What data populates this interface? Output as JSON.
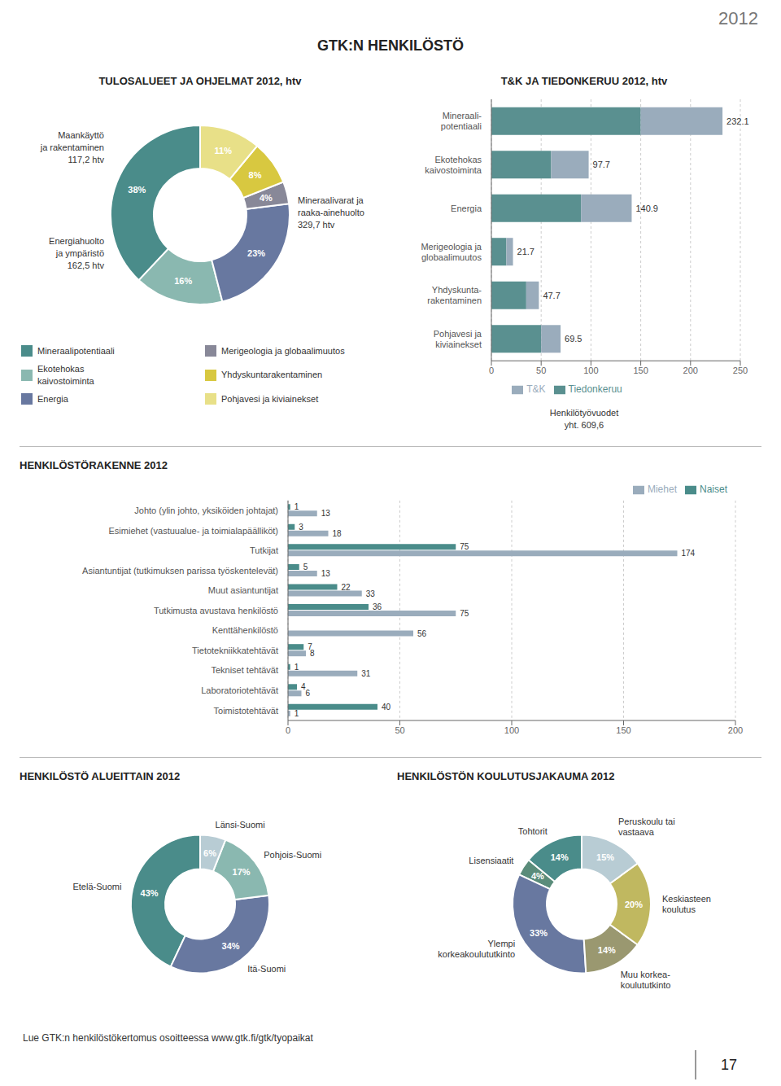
{
  "title": "GTK:N HENKILÖSTÖ",
  "subtitle": "2012",
  "annotations": [
    "Lue GTK:n henkilöstökertomus osoitteessa www.gtk.fi/gtk/tyopaikat",
    "17"
  ],
  "chart_data": [
    {
      "type": "pie",
      "title": "TULOSALUEET JA OHJELMAT 2012, htv",
      "categories": [
        "Mineraalipotentiaali",
        "Ekotehokas\nkaivostoiminta",
        "Energia",
        "Merigeologia ja globaalimuutos",
        "Yhdyskuntarakentaminen",
        "Pohjavesi ja kiviainekset"
      ],
      "values": [
        38,
        16,
        23,
        4,
        8,
        11
      ],
      "value_labels": [
        "38%",
        "16%",
        "23%",
        "4%",
        "8%",
        "11%"
      ],
      "colors": [
        "#4a8c8a",
        "#8ab8b0",
        "#6878a0",
        "#888898",
        "#d8c840",
        "#e8e088"
      ],
      "data_labels": true,
      "legend": "bottom",
      "annotations": [
        "Maankäyttö\nja rakentaminen\n117,2 htv",
        "Energiahuolto\nja ympäristö\n162,5 htv",
        "Mineraalivarat ja\nraaka-ainehuolto\n329,7 htv"
      ]
    },
    {
      "type": "bar",
      "orientation": "horizontal",
      "stacked": true,
      "title": "T&K JA TIEDONKERUU 2012, htv",
      "categories": [
        "Mineraali-\npotentiaali",
        "Ekotehokas\nkaivostoiminta",
        "Energia",
        "Merigeologia ja\nglobaalimuutos",
        "Yhdyskunta-\nrakentaminen",
        "Pohjavesi ja\nkiviainekset"
      ],
      "series": [
        {
          "name": "Tiedonkeruu",
          "color": "#5a9090",
          "values": [
            150,
            60,
            90,
            15,
            35,
            50
          ]
        },
        {
          "name": "T&K",
          "color": "#9aacbc",
          "values": [
            82.1,
            37.7,
            50.9,
            6.7,
            12.7,
            19.5
          ]
        }
      ],
      "totals": [
        232.1,
        97.7,
        140.9,
        21.7,
        47.7,
        69.5
      ],
      "xlim": [
        0,
        250
      ],
      "xticks": [
        0,
        50,
        100,
        150,
        200,
        250
      ],
      "grid": true,
      "legend": "bottom",
      "annotations": [
        "Henkilötyövuodet\nyht. 609,6"
      ]
    },
    {
      "type": "bar",
      "orientation": "horizontal",
      "title": "HENKILÖSTÖRAKENNE 2012",
      "categories": [
        "Johto (ylin johto, yksiköiden johtajat)",
        "Esimiehet (vastuualue- ja toimialapäälliköt)",
        "Tutkijat",
        "Asiantuntijat (tutkimuksen parissa työskentelevät)",
        "Muut asiantuntijat",
        "Tutkimusta avustava henkilöstö",
        "Kenttähenkilöstö",
        "Tietotekniikkatehtävät",
        "Tekniset tehtävät",
        "Laboratoriotehtävät",
        "Toimistotehtävät"
      ],
      "series": [
        {
          "name": "Naiset",
          "color": "#4a8c8a",
          "values": [
            1,
            3,
            75,
            5,
            22,
            36,
            0,
            7,
            1,
            4,
            40
          ]
        },
        {
          "name": "Miehet",
          "color": "#9aacbc",
          "values": [
            13,
            18,
            174,
            13,
            33,
            75,
            56,
            8,
            31,
            6,
            1
          ]
        }
      ],
      "xlim": [
        0,
        200
      ],
      "xticks": [
        0,
        50,
        100,
        150,
        200
      ],
      "grid": true,
      "legend": "top right",
      "data_labels": true
    },
    {
      "type": "pie",
      "title": "HENKILÖSTÖ ALUEITTAIN 2012",
      "categories": [
        "Etelä-Suomi",
        "Itä-Suomi",
        "Pohjois-Suomi",
        "Länsi-Suomi"
      ],
      "values": [
        43,
        34,
        17,
        6
      ],
      "value_labels": [
        "43%",
        "34%",
        "17%",
        "6%"
      ],
      "colors": [
        "#4a8c8a",
        "#6878a0",
        "#8ab8b0",
        "#b8ccd4"
      ],
      "data_labels": true
    },
    {
      "type": "pie",
      "title": "HENKILÖSTÖN KOULUTUSJAKAUMA 2012",
      "categories": [
        "Tohtorit",
        "Lisensiaatit",
        "Ylempi\nkorkeakoulututkinto",
        "Muu korkea-\nkoulututkinto",
        "Keskiasteen\nkoulutus",
        "Peruskoulu tai\nvastaava"
      ],
      "values": [
        14,
        4,
        33,
        14,
        20,
        15
      ],
      "value_labels": [
        "14%",
        "4%",
        "33%",
        "14%",
        "20%",
        "15%"
      ],
      "colors": [
        "#4a8c8a",
        "#5a8c7a",
        "#6878a0",
        "#9a9870",
        "#c0b860",
        "#b8ccd4"
      ],
      "data_labels": true
    }
  ]
}
